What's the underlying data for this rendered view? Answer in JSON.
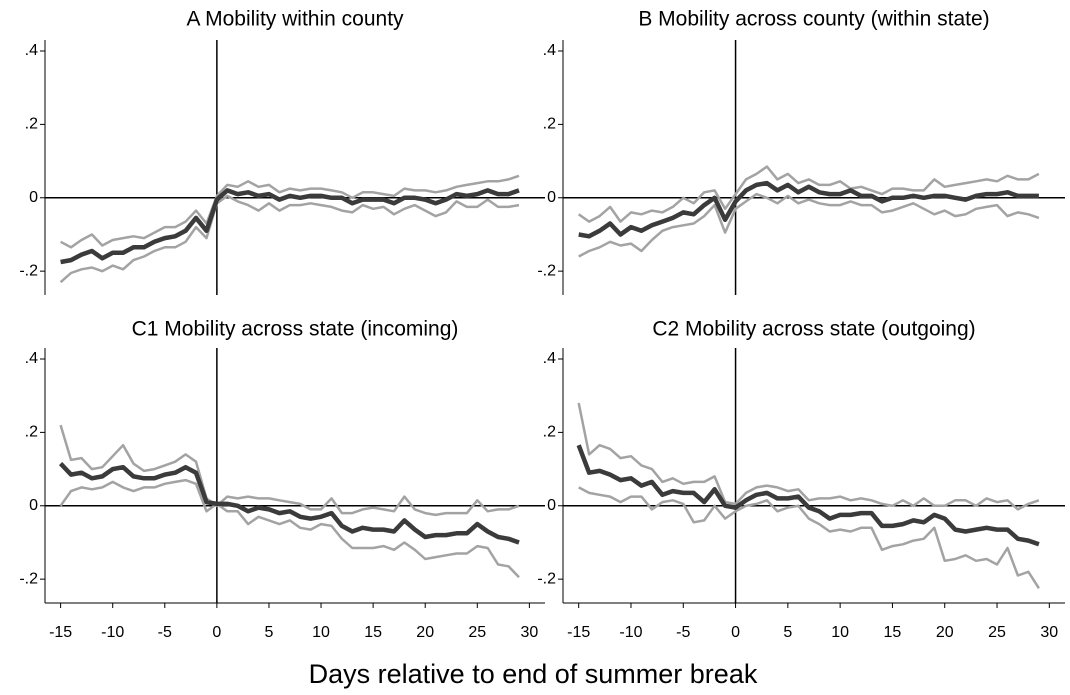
{
  "chart_data": [
    {
      "type": "line",
      "title": "A Mobility within county",
      "x": [
        -15,
        -14,
        -13,
        -12,
        -11,
        -10,
        -9,
        -8,
        -7,
        -6,
        -5,
        -4,
        -3,
        -2,
        -1,
        0,
        1,
        2,
        3,
        4,
        5,
        6,
        7,
        8,
        9,
        10,
        11,
        12,
        13,
        14,
        15,
        16,
        17,
        18,
        19,
        20,
        21,
        22,
        23,
        24,
        25,
        26,
        27,
        28,
        29
      ],
      "xlim": [
        -16.5,
        31.5
      ],
      "ylim": [
        -0.265,
        0.43
      ],
      "yticks": [
        {
          "value": 0.4,
          "label": ".4"
        },
        {
          "value": 0.2,
          "label": ".2"
        },
        0,
        {
          "value": -0.2,
          "label": "-.2"
        }
      ],
      "series": [
        {
          "color": "#a3a3a3",
          "values": [
            -0.12,
            -0.135,
            -0.115,
            -0.1,
            -0.13,
            -0.115,
            -0.11,
            -0.105,
            -0.11,
            -0.095,
            -0.08,
            -0.08,
            -0.065,
            -0.035,
            -0.07,
            0.005,
            0.035,
            0.03,
            0.045,
            0.03,
            0.035,
            0.015,
            0.025,
            0.02,
            0.025,
            0.025,
            0.02,
            0.015,
            0.0,
            0.015,
            0.015,
            0.01,
            0.005,
            0.025,
            0.02,
            0.02,
            0.015,
            0.02,
            0.03,
            0.035,
            0.04,
            0.045,
            0.045,
            0.05,
            0.06
          ]
        },
        {
          "color": "#a3a3a3",
          "values": [
            -0.23,
            -0.205,
            -0.195,
            -0.19,
            -0.2,
            -0.185,
            -0.195,
            -0.17,
            -0.16,
            -0.145,
            -0.135,
            -0.135,
            -0.12,
            -0.08,
            -0.11,
            -0.015,
            0.005,
            -0.01,
            -0.02,
            -0.035,
            -0.015,
            -0.035,
            -0.02,
            -0.02,
            -0.015,
            -0.02,
            -0.025,
            -0.035,
            -0.04,
            -0.02,
            -0.03,
            -0.025,
            -0.045,
            -0.03,
            -0.02,
            -0.035,
            -0.05,
            -0.04,
            -0.01,
            -0.025,
            -0.025,
            -0.005,
            -0.025,
            -0.025,
            -0.02
          ]
        },
        {
          "color": "#3b3b3b",
          "values": [
            -0.175,
            -0.17,
            -0.155,
            -0.145,
            -0.165,
            -0.15,
            -0.15,
            -0.135,
            -0.135,
            -0.12,
            -0.11,
            -0.105,
            -0.09,
            -0.055,
            -0.09,
            -0.005,
            0.02,
            0.01,
            0.015,
            0.005,
            0.01,
            -0.005,
            0.005,
            0.0,
            0.005,
            0.005,
            0.0,
            0.0,
            -0.015,
            -0.005,
            -0.005,
            -0.005,
            -0.015,
            0.0,
            0.0,
            -0.005,
            -0.015,
            -0.005,
            0.01,
            0.005,
            0.01,
            0.02,
            0.01,
            0.01,
            0.02
          ]
        }
      ]
    },
    {
      "type": "line",
      "title": "B Mobility across county (within state)",
      "x": [
        -15,
        -14,
        -13,
        -12,
        -11,
        -10,
        -9,
        -8,
        -7,
        -6,
        -5,
        -4,
        -3,
        -2,
        -1,
        0,
        1,
        2,
        3,
        4,
        5,
        6,
        7,
        8,
        9,
        10,
        11,
        12,
        13,
        14,
        15,
        16,
        17,
        18,
        19,
        20,
        21,
        22,
        23,
        24,
        25,
        26,
        27,
        28,
        29
      ],
      "xlim": [
        -16.5,
        31.5
      ],
      "ylim": [
        -0.265,
        0.43
      ],
      "yticks": [
        {
          "value": 0.4,
          "label": ".4"
        },
        {
          "value": 0.2,
          "label": ".2"
        },
        0,
        {
          "value": -0.2,
          "label": "-.2"
        }
      ],
      "series": [
        {
          "color": "#a3a3a3",
          "values": [
            -0.045,
            -0.065,
            -0.05,
            -0.025,
            -0.065,
            -0.04,
            -0.045,
            -0.035,
            -0.04,
            -0.025,
            0.0,
            -0.015,
            0.015,
            0.02,
            -0.03,
            0.01,
            0.05,
            0.065,
            0.085,
            0.05,
            0.065,
            0.04,
            0.05,
            0.035,
            0.035,
            0.045,
            0.025,
            0.03,
            0.02,
            0.01,
            0.025,
            0.025,
            0.02,
            0.02,
            0.05,
            0.03,
            0.035,
            0.04,
            0.045,
            0.05,
            0.045,
            0.06,
            0.05,
            0.05,
            0.065
          ]
        },
        {
          "color": "#a3a3a3",
          "values": [
            -0.16,
            -0.145,
            -0.135,
            -0.12,
            -0.13,
            -0.125,
            -0.145,
            -0.115,
            -0.09,
            -0.08,
            -0.075,
            -0.07,
            -0.05,
            -0.02,
            -0.095,
            -0.03,
            -0.01,
            0.01,
            0.0,
            -0.015,
            0.005,
            -0.015,
            -0.005,
            -0.015,
            -0.02,
            -0.02,
            -0.01,
            -0.02,
            -0.02,
            -0.04,
            -0.035,
            -0.025,
            -0.015,
            -0.03,
            -0.045,
            -0.035,
            -0.05,
            -0.045,
            -0.03,
            -0.025,
            -0.02,
            -0.05,
            -0.04,
            -0.045,
            -0.055
          ]
        },
        {
          "color": "#3b3b3b",
          "values": [
            -0.1,
            -0.105,
            -0.09,
            -0.07,
            -0.1,
            -0.08,
            -0.09,
            -0.075,
            -0.065,
            -0.055,
            -0.04,
            -0.045,
            -0.02,
            0.0,
            -0.06,
            -0.01,
            0.02,
            0.035,
            0.04,
            0.02,
            0.035,
            0.015,
            0.03,
            0.015,
            0.01,
            0.01,
            0.02,
            0.005,
            0.005,
            -0.01,
            0.0,
            0.0,
            0.005,
            0.0,
            0.005,
            0.005,
            0.0,
            -0.005,
            0.005,
            0.01,
            0.01,
            0.015,
            0.005,
            0.005,
            0.005
          ]
        }
      ]
    },
    {
      "type": "line",
      "title": "C1 Mobility across state (incoming)",
      "x": [
        -15,
        -14,
        -13,
        -12,
        -11,
        -10,
        -9,
        -8,
        -7,
        -6,
        -5,
        -4,
        -3,
        -2,
        -1,
        0,
        1,
        2,
        3,
        4,
        5,
        6,
        7,
        8,
        9,
        10,
        11,
        12,
        13,
        14,
        15,
        16,
        17,
        18,
        19,
        20,
        21,
        22,
        23,
        24,
        25,
        26,
        27,
        28,
        29
      ],
      "xlim": [
        -16.5,
        31.5
      ],
      "ylim": [
        -0.265,
        0.43
      ],
      "xticks": [
        -15,
        -10,
        -5,
        0,
        5,
        10,
        15,
        20,
        25,
        30
      ],
      "yticks": [
        {
          "value": 0.4,
          "label": ".4"
        },
        {
          "value": 0.2,
          "label": ".2"
        },
        0,
        {
          "value": -0.2,
          "label": "-.2"
        }
      ],
      "series": [
        {
          "color": "#a3a3a3",
          "values": [
            0.22,
            0.125,
            0.13,
            0.1,
            0.105,
            0.135,
            0.165,
            0.115,
            0.095,
            0.1,
            0.11,
            0.12,
            0.14,
            0.12,
            0.02,
            0.0,
            0.025,
            0.02,
            0.025,
            0.02,
            0.02,
            0.015,
            0.01,
            0.005,
            -0.01,
            -0.01,
            0.02,
            -0.02,
            -0.02,
            -0.01,
            -0.005,
            -0.01,
            -0.015,
            0.025,
            -0.01,
            -0.02,
            -0.025,
            -0.02,
            -0.02,
            -0.02,
            0.015,
            -0.015,
            -0.01,
            -0.01,
            0.0
          ]
        },
        {
          "color": "#a3a3a3",
          "values": [
            0.0,
            0.04,
            0.05,
            0.045,
            0.05,
            0.065,
            0.05,
            0.04,
            0.05,
            0.05,
            0.06,
            0.065,
            0.07,
            0.06,
            -0.015,
            0.005,
            -0.015,
            -0.015,
            -0.05,
            -0.03,
            -0.04,
            -0.05,
            -0.04,
            -0.06,
            -0.065,
            -0.05,
            -0.055,
            -0.09,
            -0.115,
            -0.115,
            -0.115,
            -0.11,
            -0.12,
            -0.1,
            -0.12,
            -0.145,
            -0.14,
            -0.135,
            -0.13,
            -0.13,
            -0.11,
            -0.115,
            -0.16,
            -0.165,
            -0.195
          ]
        },
        {
          "color": "#3b3b3b",
          "values": [
            0.115,
            0.085,
            0.09,
            0.075,
            0.08,
            0.1,
            0.105,
            0.08,
            0.075,
            0.075,
            0.085,
            0.09,
            0.105,
            0.09,
            0.01,
            0.005,
            0.005,
            0.0,
            -0.015,
            -0.005,
            -0.01,
            -0.02,
            -0.015,
            -0.03,
            -0.035,
            -0.03,
            -0.02,
            -0.055,
            -0.07,
            -0.06,
            -0.065,
            -0.065,
            -0.07,
            -0.04,
            -0.065,
            -0.085,
            -0.08,
            -0.08,
            -0.075,
            -0.075,
            -0.05,
            -0.07,
            -0.085,
            -0.09,
            -0.1
          ]
        }
      ]
    },
    {
      "type": "line",
      "title": "C2 Mobility across state (outgoing)",
      "x": [
        -15,
        -14,
        -13,
        -12,
        -11,
        -10,
        -9,
        -8,
        -7,
        -6,
        -5,
        -4,
        -3,
        -2,
        -1,
        0,
        1,
        2,
        3,
        4,
        5,
        6,
        7,
        8,
        9,
        10,
        11,
        12,
        13,
        14,
        15,
        16,
        17,
        18,
        19,
        20,
        21,
        22,
        23,
        24,
        25,
        26,
        27,
        28,
        29
      ],
      "xlim": [
        -16.5,
        31.5
      ],
      "ylim": [
        -0.265,
        0.43
      ],
      "xticks": [
        -15,
        -10,
        -5,
        0,
        5,
        10,
        15,
        20,
        25,
        30
      ],
      "yticks": [
        {
          "value": 0.4,
          "label": ".4"
        },
        {
          "value": 0.2,
          "label": ".2"
        },
        0,
        {
          "value": -0.2,
          "label": "-.2"
        }
      ],
      "series": [
        {
          "color": "#a3a3a3",
          "values": [
            0.28,
            0.14,
            0.165,
            0.155,
            0.13,
            0.135,
            0.11,
            0.1,
            0.065,
            0.075,
            0.06,
            0.065,
            0.065,
            0.08,
            0.01,
            0.005,
            0.035,
            0.05,
            0.055,
            0.05,
            0.04,
            0.045,
            0.015,
            0.02,
            0.02,
            0.025,
            0.015,
            0.02,
            0.015,
            0.005,
            0.0,
            0.015,
            0.0,
            0.02,
            0.0,
            0.0,
            0.015,
            0.015,
            0.0,
            0.02,
            0.01,
            0.015,
            -0.01,
            0.005,
            0.015
          ]
        },
        {
          "color": "#a3a3a3",
          "values": [
            0.05,
            0.035,
            0.03,
            0.025,
            0.01,
            0.025,
            0.025,
            -0.01,
            0.01,
            0.015,
            0.005,
            -0.045,
            -0.04,
            0.0,
            -0.035,
            -0.015,
            0.0,
            0.005,
            0.015,
            -0.015,
            -0.005,
            0.0,
            -0.035,
            -0.05,
            -0.07,
            -0.065,
            -0.07,
            -0.06,
            -0.06,
            -0.12,
            -0.11,
            -0.105,
            -0.095,
            -0.09,
            -0.06,
            -0.15,
            -0.145,
            -0.135,
            -0.15,
            -0.145,
            -0.16,
            -0.115,
            -0.19,
            -0.18,
            -0.225
          ]
        },
        {
          "color": "#3b3b3b",
          "values": [
            0.165,
            0.09,
            0.095,
            0.085,
            0.07,
            0.075,
            0.055,
            0.065,
            0.03,
            0.04,
            0.035,
            0.035,
            0.01,
            0.045,
            0.0,
            -0.005,
            0.015,
            0.03,
            0.035,
            0.02,
            0.02,
            0.025,
            -0.005,
            -0.015,
            -0.035,
            -0.025,
            -0.025,
            -0.02,
            -0.02,
            -0.055,
            -0.055,
            -0.05,
            -0.04,
            -0.045,
            -0.025,
            -0.035,
            -0.065,
            -0.07,
            -0.065,
            -0.06,
            -0.065,
            -0.065,
            -0.09,
            -0.095,
            -0.105
          ]
        }
      ]
    }
  ],
  "xlabel": "Days relative to end of summer break"
}
